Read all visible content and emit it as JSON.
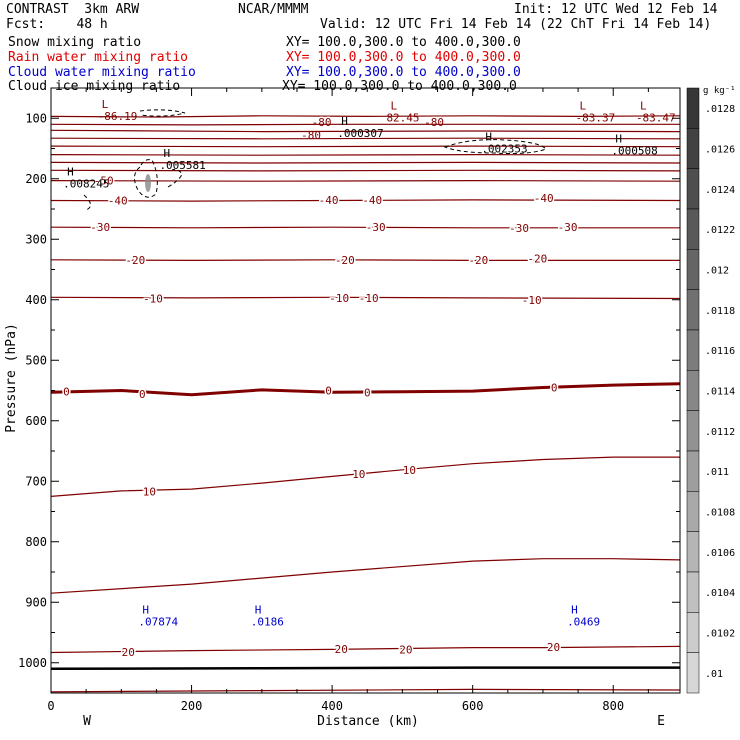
{
  "header": {
    "model": "CONTRAST  3km ARW",
    "center": "NCAR/MMMM",
    "init": "Init: 12 UTC Wed 12 Feb 14",
    "fcst": "Fcst:    48 h",
    "valid": "Valid: 12 UTC Fri 14 Feb 14 (22 ChT Fri 14 Feb 14)",
    "fields": [
      {
        "name": "Snow mixing ratio",
        "xy": "XY= 100.0,300.0 to 400.0,300.0",
        "color": "#000000"
      },
      {
        "name": "Rain water mixing ratio",
        "xy": "XY= 100.0,300.0 to 400.0,300.0",
        "color": "#e00000"
      },
      {
        "name": "Cloud water mixing ratio",
        "xy": "XY= 100.0,300.0 to 400.0,300.0",
        "color": "#0000cc"
      },
      {
        "name": "Cloud ice mixing ratio",
        "xy": "XY= 100.0,300.0 to 400.0,300.0",
        "color": "#000000"
      }
    ]
  },
  "chart_data": {
    "type": "contour",
    "xlabel": "Distance (km)",
    "ylabel": "Pressure (hPa)",
    "xlim": [
      0,
      895
    ],
    "ylim": [
      1050,
      50
    ],
    "x_ticks": [
      0,
      200,
      400,
      600,
      800
    ],
    "y_ticks": [
      100,
      200,
      300,
      400,
      500,
      600,
      700,
      800,
      900,
      1000
    ],
    "x_end_labels": {
      "left": "W",
      "right": "E"
    },
    "colorbar": {
      "unit": "g kg⁻¹",
      "ticks": [
        ".0128",
        ".0126",
        ".0124",
        ".0122",
        ".012",
        ".0118",
        ".0116",
        ".0114",
        ".0112",
        ".011",
        ".0108",
        ".0106",
        ".0104",
        ".0102",
        ".01"
      ]
    },
    "temperature_contours_color": "#800000",
    "temperature_contours": [
      {
        "label": "-80",
        "points": [
          [
            0,
            97
          ],
          [
            150,
            98
          ],
          [
            300,
            96
          ],
          [
            450,
            97
          ],
          [
            600,
            96
          ],
          [
            750,
            97
          ],
          [
            895,
            96
          ]
        ],
        "labels_at": [
          [
            385,
            106
          ],
          [
            545,
            106
          ]
        ]
      },
      {
        "label": "-80",
        "points": [
          [
            0,
            110
          ],
          [
            200,
            111
          ],
          [
            400,
            110
          ],
          [
            600,
            110
          ],
          [
            895,
            110
          ]
        ],
        "labels_at": [
          [
            370,
            128
          ]
        ]
      },
      {
        "label": "",
        "points": [
          [
            0,
            120
          ],
          [
            300,
            122
          ],
          [
            600,
            121
          ],
          [
            895,
            122
          ]
        ],
        "labels_at": []
      },
      {
        "label": "",
        "points": [
          [
            0,
            133
          ],
          [
            300,
            134
          ],
          [
            600,
            133
          ],
          [
            895,
            134
          ]
        ],
        "labels_at": []
      },
      {
        "label": "",
        "points": [
          [
            0,
            146
          ],
          [
            300,
            147
          ],
          [
            600,
            146
          ],
          [
            895,
            147
          ]
        ],
        "labels_at": []
      },
      {
        "label": "",
        "points": [
          [
            0,
            160
          ],
          [
            300,
            161
          ],
          [
            600,
            160
          ],
          [
            895,
            161
          ]
        ],
        "labels_at": []
      },
      {
        "label": "",
        "points": [
          [
            0,
            173
          ],
          [
            300,
            174
          ],
          [
            600,
            173
          ],
          [
            895,
            174
          ]
        ],
        "labels_at": []
      },
      {
        "label": "",
        "points": [
          [
            0,
            186
          ],
          [
            300,
            187
          ],
          [
            600,
            186
          ],
          [
            895,
            187
          ]
        ],
        "labels_at": []
      },
      {
        "label": "-50",
        "points": [
          [
            0,
            203
          ],
          [
            300,
            204
          ],
          [
            600,
            203
          ],
          [
            895,
            204
          ]
        ],
        "labels_at": [
          [
            75,
            203
          ]
        ]
      },
      {
        "label": "-40",
        "points": [
          [
            0,
            236
          ],
          [
            200,
            237
          ],
          [
            400,
            236
          ],
          [
            600,
            235
          ],
          [
            895,
            236
          ]
        ],
        "labels_at": [
          [
            95,
            236
          ],
          [
            395,
            235
          ],
          [
            457,
            235
          ],
          [
            701,
            232
          ]
        ]
      },
      {
        "label": "-30",
        "points": [
          [
            0,
            280
          ],
          [
            200,
            281
          ],
          [
            400,
            280
          ],
          [
            600,
            281
          ],
          [
            895,
            281
          ]
        ],
        "labels_at": [
          [
            70,
            280
          ],
          [
            462,
            280
          ],
          [
            666,
            281
          ],
          [
            735,
            280
          ]
        ]
      },
      {
        "label": "-20",
        "points": [
          [
            0,
            334
          ],
          [
            200,
            335
          ],
          [
            400,
            334
          ],
          [
            600,
            335
          ],
          [
            895,
            335
          ]
        ],
        "labels_at": [
          [
            120,
            334
          ],
          [
            418,
            334
          ],
          [
            608,
            334
          ],
          [
            692,
            332
          ]
        ]
      },
      {
        "label": "-10",
        "points": [
          [
            0,
            396
          ],
          [
            200,
            397
          ],
          [
            400,
            396
          ],
          [
            600,
            397
          ],
          [
            895,
            398
          ]
        ],
        "labels_at": [
          [
            145,
            398
          ],
          [
            410,
            397
          ],
          [
            452,
            397
          ],
          [
            684,
            400
          ]
        ]
      },
      {
        "label": "0",
        "bold": true,
        "points": [
          [
            0,
            553
          ],
          [
            100,
            550
          ],
          [
            200,
            557
          ],
          [
            300,
            549
          ],
          [
            400,
            553
          ],
          [
            500,
            552
          ],
          [
            600,
            551
          ],
          [
            700,
            545
          ],
          [
            800,
            541
          ],
          [
            895,
            539
          ]
        ],
        "labels_at": [
          [
            22,
            552
          ],
          [
            130,
            556
          ],
          [
            395,
            550
          ],
          [
            450,
            553
          ],
          [
            716,
            545
          ]
        ]
      },
      {
        "label": "10",
        "points": [
          [
            0,
            725
          ],
          [
            100,
            716
          ],
          [
            200,
            713
          ],
          [
            300,
            703
          ],
          [
            400,
            692
          ],
          [
            500,
            681
          ],
          [
            600,
            671
          ],
          [
            700,
            664
          ],
          [
            800,
            660
          ],
          [
            895,
            660
          ]
        ],
        "labels_at": [
          [
            140,
            717
          ],
          [
            438,
            688
          ],
          [
            510,
            681
          ]
        ]
      },
      {
        "label": "",
        "points": [
          [
            0,
            885
          ],
          [
            200,
            870
          ],
          [
            400,
            850
          ],
          [
            600,
            832
          ],
          [
            700,
            828
          ],
          [
            800,
            828
          ],
          [
            895,
            830
          ]
        ],
        "labels_at": []
      },
      {
        "label": "20",
        "points": [
          [
            0,
            983
          ],
          [
            200,
            980
          ],
          [
            400,
            978
          ],
          [
            600,
            975
          ],
          [
            700,
            975
          ],
          [
            895,
            973
          ]
        ],
        "labels_at": [
          [
            110,
            982
          ],
          [
            413,
            977
          ],
          [
            505,
            978
          ],
          [
            715,
            974
          ]
        ]
      },
      {
        "label": "",
        "points": [
          [
            0,
            1048
          ],
          [
            300,
            1046
          ],
          [
            600,
            1044
          ],
          [
            895,
            1045
          ]
        ],
        "labels_at": []
      }
    ],
    "surface_line": {
      "color": "#000000",
      "points": [
        [
          0,
          1010
        ],
        [
          300,
          1009
        ],
        [
          600,
          1008
        ],
        [
          895,
          1008
        ]
      ]
    },
    "min_max_labels": [
      {
        "mark": "L",
        "value": "-86.19",
        "x": 72,
        "p": 96,
        "color": "#800000"
      },
      {
        "mark": "H",
        "value": ".000307",
        "x": 413,
        "p": 124,
        "color": "#000000"
      },
      {
        "mark": "L",
        "value": "82.45",
        "x": 483,
        "p": 99,
        "color": "#800000"
      },
      {
        "mark": "H",
        "value": ".002353",
        "x": 618,
        "p": 150,
        "color": "#000000"
      },
      {
        "mark": "L",
        "value": "-83.37",
        "x": 752,
        "p": 99,
        "color": "#800000"
      },
      {
        "mark": "L",
        "value": "-83.47",
        "x": 838,
        "p": 99,
        "color": "#800000"
      },
      {
        "mark": "H",
        "value": ".000508",
        "x": 803,
        "p": 153,
        "color": "#000000"
      },
      {
        "mark": "H",
        "value": ".005581",
        "x": 160,
        "p": 177,
        "color": "#000000"
      },
      {
        "mark": "H",
        "value": ".008245",
        "x": 23,
        "p": 208,
        "color": "#000000"
      },
      {
        "mark": "H",
        "value": ".07874",
        "x": 130,
        "p": 932,
        "color": "#0000cc"
      },
      {
        "mark": "H",
        "value": ".0186",
        "x": 290,
        "p": 932,
        "color": "#0000cc"
      },
      {
        "mark": "H",
        "value": ".0469",
        "x": 740,
        "p": 932,
        "color": "#0000cc"
      }
    ]
  }
}
